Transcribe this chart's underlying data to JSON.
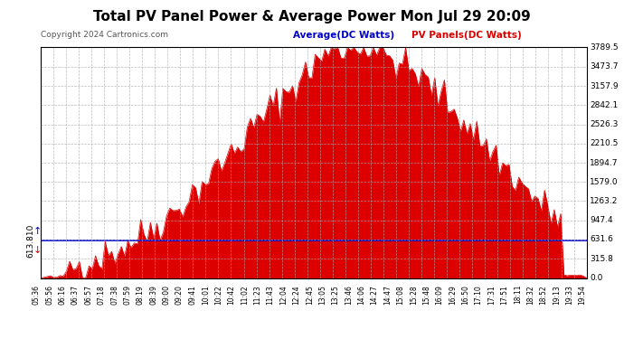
{
  "title": "Total PV Panel Power & Average Power Mon Jul 29 20:09",
  "copyright": "Copyright 2024 Cartronics.com",
  "legend_avg": "Average(DC Watts)",
  "legend_pv": "PV Panels(DC Watts)",
  "avg_value": 613.81,
  "ymax": 3789.5,
  "ymin": 0.0,
  "yticks": [
    0.0,
    315.8,
    631.6,
    947.4,
    1263.2,
    1579.0,
    1894.7,
    2210.5,
    2526.3,
    2842.1,
    3157.9,
    3473.7,
    3789.5
  ],
  "ytick_labels": [
    "0.0",
    "315.8",
    "631.6",
    "947.4",
    "1263.2",
    "1579.0",
    "1894.7",
    "2210.5",
    "2526.3",
    "2842.1",
    "3157.9",
    "3473.7",
    "3789.5"
  ],
  "left_label": "613.810",
  "bg_color": "#ffffff",
  "plot_bg_color": "#ffffff",
  "grid_color": "#aaaaaa",
  "fill_color": "#dd0000",
  "line_color": "#dd0000",
  "avg_color": "#0000cc",
  "title_color": "#000000",
  "copyright_color": "#000000",
  "xtick_color": "#000000",
  "ytick_color": "#000000",
  "n_points": 170
}
